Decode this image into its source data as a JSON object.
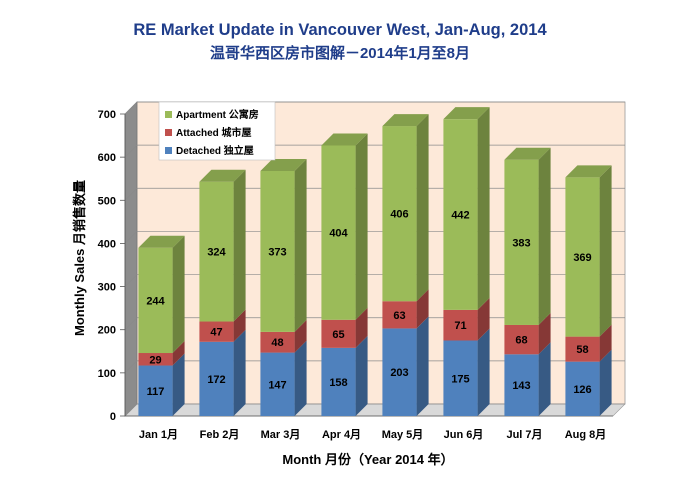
{
  "chart_data": {
    "type": "bar",
    "stacked": true,
    "three_d": true,
    "title": "RE Market Update in Vancouver West, Jan-Aug, 2014",
    "subtitle": "温哥华西区房市图解－2014年1月至8月",
    "xlabel": "Month 月份（Year 2014 年）",
    "ylabel": "Monthly Sales 月销售数量",
    "ylim": [
      0,
      700
    ],
    "yticks": [
      0,
      100,
      200,
      300,
      400,
      500,
      600,
      700
    ],
    "grid": true,
    "legend_position": "top-left",
    "categories": [
      "Jan 1月",
      "Feb 2月",
      "Mar 3月",
      "Apr 4月",
      "May 5月",
      "Jun 6月",
      "Jul 7月",
      "Aug 8月"
    ],
    "series": [
      {
        "name": "Detached 独立屋",
        "color": "#4f81bd",
        "values": [
          117,
          172,
          147,
          158,
          203,
          175,
          143,
          126
        ]
      },
      {
        "name": "Attached 城市屋",
        "color": "#c0504d",
        "values": [
          29,
          47,
          48,
          65,
          63,
          71,
          68,
          58
        ]
      },
      {
        "name": "Apartment 公寓房",
        "color": "#9bbb59",
        "values": [
          244,
          324,
          373,
          404,
          406,
          442,
          383,
          369
        ]
      }
    ],
    "colors": {
      "title": "#1f3d8a",
      "plot_background": "#fde9d9",
      "side_wall": "#8c8c8c",
      "floor": "#d9d9d9"
    }
  }
}
